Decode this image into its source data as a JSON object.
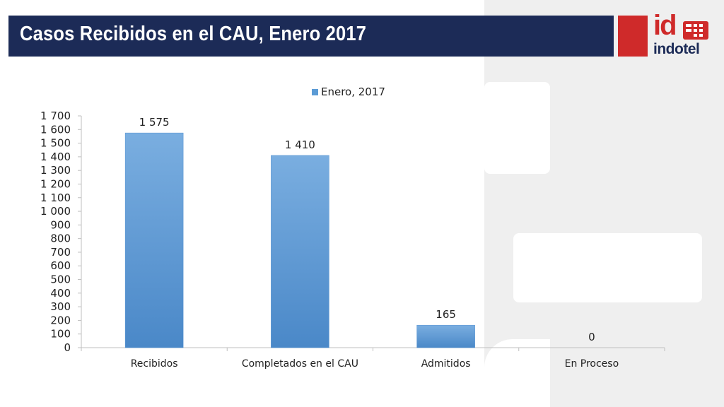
{
  "slide": {
    "title": "Casos Recibidos en el CAU, Enero 2017",
    "colors": {
      "title_bar": "#1c2b57",
      "brand_red": "#cf2a2a",
      "bar_fill": "#5b9bd5"
    }
  },
  "logo": {
    "mark": "id",
    "name": "indotel",
    "icon": "indotel-logo-icon"
  },
  "chart_data": {
    "type": "bar",
    "categories": [
      "Recibidos",
      "Completados en el CAU",
      "Admitidos",
      "En Proceso"
    ],
    "series": [
      {
        "name": "Enero, 2017",
        "values": [
          1575,
          1410,
          165,
          0
        ]
      }
    ],
    "data_labels": [
      "1 575",
      "1 410",
      "165",
      "0"
    ],
    "ylim": [
      0,
      1700
    ],
    "yticks": [
      0,
      100,
      200,
      300,
      400,
      500,
      600,
      700,
      800,
      900,
      1000,
      1100,
      1200,
      1300,
      1400,
      1500,
      1600,
      1700
    ],
    "ytick_labels": [
      "0",
      "100",
      "200",
      "300",
      "400",
      "500",
      "600",
      "700",
      "800",
      "900",
      "1 000",
      "1 100",
      "1 200",
      "1 300",
      "1 400",
      "1 500",
      "1 600",
      "1 700"
    ],
    "xlabel": "",
    "ylabel": "",
    "legend_position": "top",
    "grid": false
  }
}
